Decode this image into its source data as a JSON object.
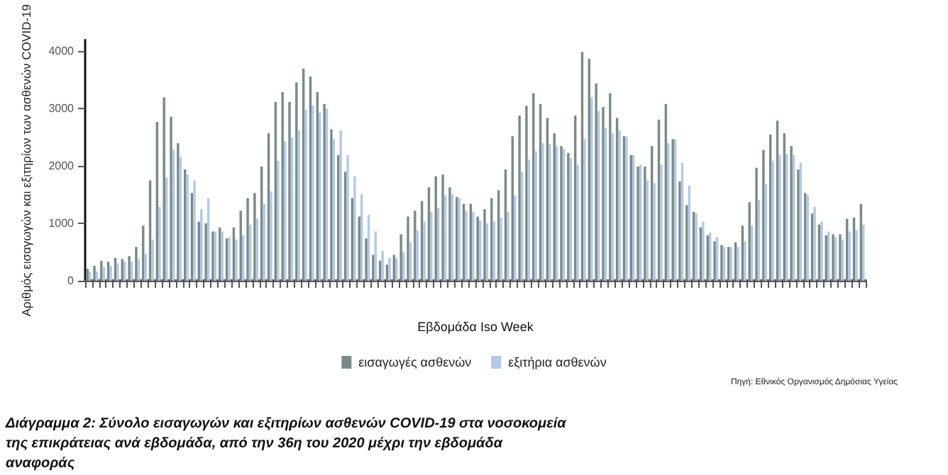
{
  "chart_data": {
    "type": "bar",
    "xlabel": "Εβδομάδα Iso Week",
    "ylabel": "Αριθμός εισαγωγών και εξιτηρίων των ασθενών COVID-19",
    "categories": [
      null,
      null,
      null,
      null,
      null,
      null,
      null,
      null,
      null,
      null,
      null,
      null,
      null,
      null,
      null,
      null,
      null,
      null,
      null,
      null,
      null,
      null,
      null,
      null,
      null,
      null,
      null,
      null,
      null,
      null,
      null,
      null,
      null,
      null,
      null,
      null,
      null,
      null,
      null,
      null,
      null,
      null,
      null,
      null,
      null,
      null,
      null,
      null,
      null,
      null,
      null,
      null,
      null,
      null,
      null,
      null,
      null,
      null,
      null,
      null,
      null,
      null,
      null,
      null,
      null,
      null,
      null,
      null,
      null,
      null,
      null,
      null,
      null,
      null,
      null,
      null,
      null,
      null,
      null,
      null,
      null,
      null,
      null,
      null,
      null,
      null,
      null,
      null,
      null,
      null,
      null,
      null,
      null,
      null,
      null,
      null,
      null,
      null,
      null,
      null,
      null,
      null,
      null,
      null,
      null,
      null,
      null,
      null,
      null,
      null,
      null,
      null
    ],
    "series": [
      {
        "name": "εισαγωγές ασθενών",
        "color": "#7a8a87",
        "values": [
          210,
          260,
          350,
          330,
          400,
          380,
          430,
          590,
          960,
          1750,
          2770,
          3200,
          2860,
          2400,
          1940,
          1530,
          1030,
          1000,
          860,
          930,
          740,
          930,
          1220,
          1440,
          1530,
          1990,
          2570,
          3120,
          3290,
          3120,
          3460,
          3700,
          3560,
          3290,
          3080,
          2640,
          2190,
          1900,
          1440,
          1120,
          740,
          450,
          350,
          280,
          450,
          810,
          1120,
          1220,
          1390,
          1630,
          1820,
          1850,
          1630,
          1460,
          1340,
          1340,
          1120,
          1250,
          1440,
          1580,
          1940,
          2520,
          2880,
          3050,
          3270,
          3080,
          2840,
          2570,
          2350,
          2230,
          2880,
          3990,
          3870,
          3440,
          3030,
          3270,
          2840,
          2520,
          2190,
          1990,
          1990,
          2350,
          2810,
          3080,
          2470,
          1730,
          1320,
          1200,
          930,
          790,
          690,
          620,
          590,
          670,
          960,
          1370,
          1970,
          2280,
          2550,
          2790,
          2570,
          2350,
          1940,
          1530,
          1170,
          980,
          790,
          810,
          810,
          1080,
          1100,
          1340
        ]
      },
      {
        "name": "εξιτήρια ασθενών",
        "color": "#b4c8e8",
        "values": [
          160,
          160,
          240,
          260,
          300,
          330,
          330,
          380,
          470,
          720,
          1290,
          1800,
          2280,
          2160,
          1850,
          1750,
          1250,
          1440,
          860,
          860,
          760,
          720,
          790,
          980,
          1080,
          1340,
          1560,
          2090,
          2430,
          2500,
          2620,
          2980,
          3050,
          2930,
          3000,
          2470,
          2620,
          2190,
          1820,
          1510,
          1150,
          860,
          520,
          400,
          400,
          500,
          670,
          880,
          1030,
          1200,
          1270,
          1490,
          1510,
          1440,
          1220,
          1200,
          1050,
          1000,
          1030,
          1100,
          1200,
          1490,
          1900,
          2110,
          2260,
          2400,
          2380,
          2350,
          2300,
          2140,
          2020,
          2470,
          3200,
          2960,
          2670,
          2570,
          2620,
          2520,
          2190,
          2020,
          1750,
          1700,
          2020,
          2400,
          2470,
          2060,
          1660,
          1170,
          1030,
          840,
          760,
          590,
          590,
          590,
          690,
          960,
          1410,
          1680,
          2090,
          2190,
          2210,
          2190,
          2060,
          1490,
          1290,
          1030,
          860,
          760,
          720,
          860,
          880,
          980
        ]
      }
    ],
    "ylim": [
      0,
      4200
    ],
    "yticks": [
      0,
      1000,
      2000,
      3000,
      4000
    ],
    "grid": false,
    "legend": "bottom",
    "annotations": [
      "Πηγή: Εθνικός Οργανισμός Δημόσιας Υγείας",
      "Διάγραμμα 2: Σύνολο εισαγωγών και εξιτηρίων ασθενών COVID-19 στα νοσοκομεία της επικράτειας ανά εβδομάδα, από την 36η του 2020 μέχρι την εβδομάδα αναφοράς"
    ]
  }
}
